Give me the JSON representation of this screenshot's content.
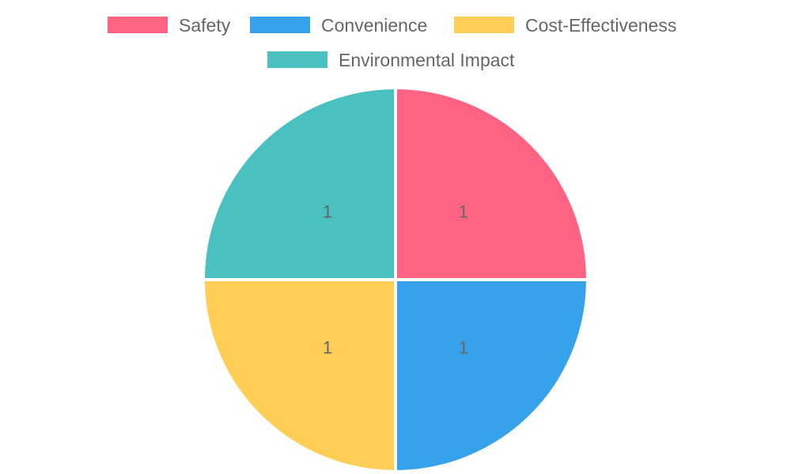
{
  "chart_data": {
    "type": "pie",
    "categories": [
      "Safety",
      "Convenience",
      "Cost-Effectiveness",
      "Environmental Impact"
    ],
    "values": [
      1,
      1,
      1,
      1
    ],
    "colors": [
      "#ff6384",
      "#36a2eb",
      "#ffce56",
      "#4bc0c0"
    ],
    "title": "",
    "legend_position": "top",
    "data_labels": [
      "1",
      "1",
      "1",
      "1"
    ]
  }
}
